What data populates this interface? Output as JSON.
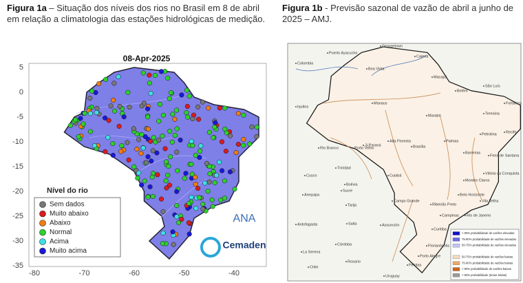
{
  "figure_a": {
    "caption_label": "Figura 1a",
    "caption_text": " – Situação dos níveis dos rios no Brasil em 8 de abril em relação a climatologia das estações hidrológicas de medição.",
    "map_title": "08-Apr-2025",
    "yticks": [
      5,
      0,
      -5,
      -10,
      -15,
      -20,
      -25,
      -30,
      -35
    ],
    "xticks": [
      -80,
      -70,
      -60,
      -50,
      -40
    ],
    "legend": {
      "title": "Nível do rio",
      "items": [
        {
          "label": "Sem dados",
          "color": "#777777"
        },
        {
          "label": "Muito abaixo",
          "color": "#d71e1e"
        },
        {
          "label": "Abaixo",
          "color": "#f07d14"
        },
        {
          "label": "Normal",
          "color": "#2ed12e"
        },
        {
          "label": "Acima",
          "color": "#3ee0e6"
        },
        {
          "label": "Muito acima",
          "color": "#1a1ad6"
        }
      ]
    },
    "logos": [
      "ANA",
      "Cemaden"
    ]
  },
  "figure_b": {
    "caption_label": "Figura 1b",
    "caption_text": " - Previsão sazonal de vazão de abril a junho de 2025 – AMJ.",
    "legend": [
      {
        "label": "> 90% probabilidade de vazões elevadas",
        "color": "#1010c8"
      },
      {
        "label": "75-90% probabilidade de vazões elevadas",
        "color": "#6a6ae6"
      },
      {
        "label": "50-75% probabilidade de vazões elevadas",
        "color": "#c4c4f4"
      },
      {
        "label": "50-75% probabilidade de vazões baixas",
        "color": "#f6dcc0"
      },
      {
        "label": "75-90% probabilidade de vazões baixas",
        "color": "#eea868"
      },
      {
        "label": "> 90% probabilidade de vazões baixas",
        "color": "#c8661c"
      },
      {
        "label": "> 50% probabilidade (áreas áridas)",
        "color": "#9a9a9a"
      }
    ],
    "cities": [
      "Georgetown",
      "Puerto Ayacucho",
      "Caiena",
      "Colombia",
      "Boa Vista",
      "Macapá",
      "Belém",
      "Manaus",
      "São Luís",
      "Fortaleza",
      "Teresina",
      "Marabá",
      "Iquitos",
      "Petrolina",
      "Recife",
      "Palmas",
      "Porto Velho",
      "Rio Branco",
      "Ji-Paraná",
      "Alta Floresta",
      "Brasília",
      "Barreiras",
      "Feira de Santana",
      "Cusco",
      "Trinidad",
      "Vitória da Conquista",
      "Cuiabá",
      "Bolívia",
      "Montes Claros",
      "Sucre",
      "Arequipa",
      "Belo Horizonte",
      "Vila Velha",
      "Campo Grande",
      "Ribeirão Preto",
      "Tarija",
      "Campinas",
      "Rio de Janeiro",
      "Salta",
      "Assunción",
      "Curitiba",
      "Antofagasta",
      "Florianópolis",
      "Córdoba",
      "La Serena",
      "Porto Alegre",
      "Chile",
      "Rosario",
      "Pelotas",
      "Uruguay"
    ]
  }
}
